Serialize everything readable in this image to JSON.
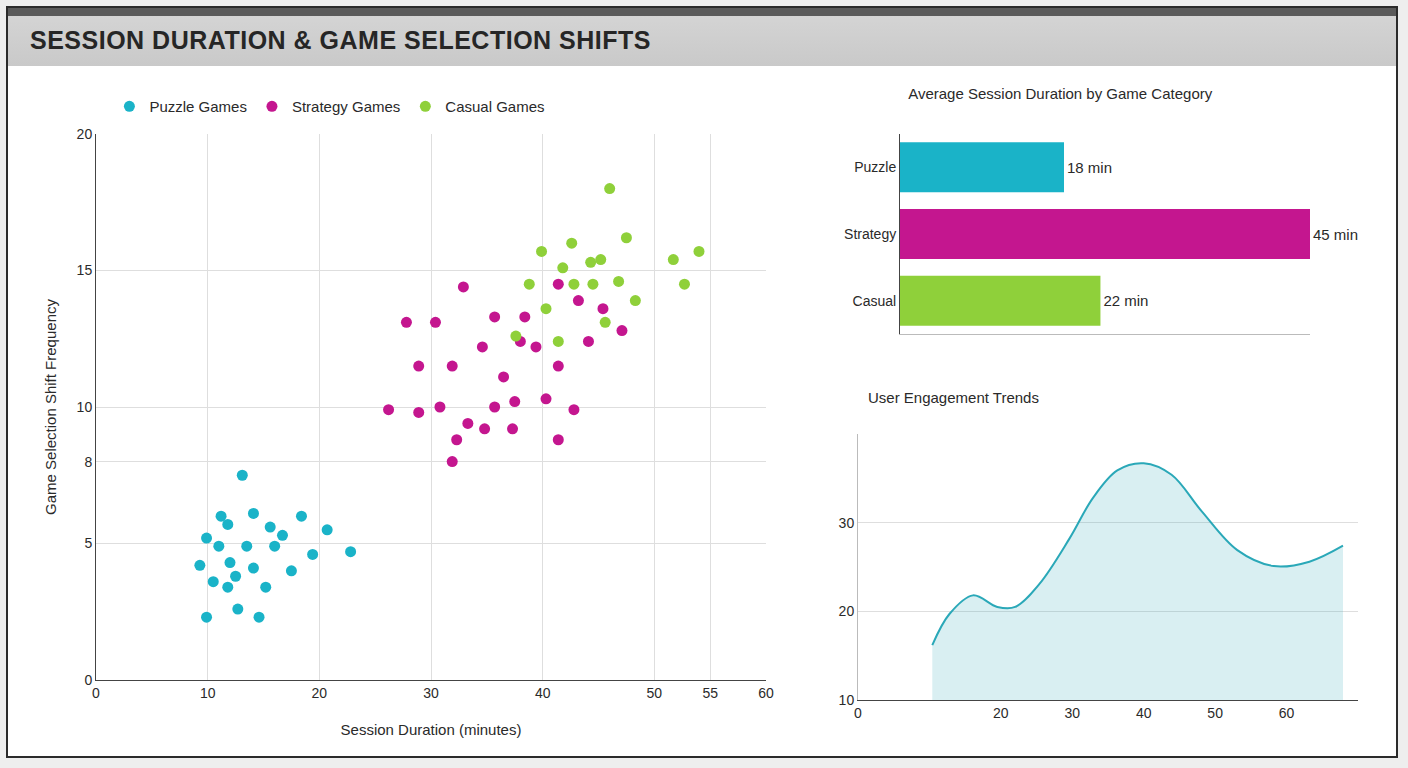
{
  "title": "SESSION DURATION & GAME SELECTION SHIFTS",
  "chart_data": [
    {
      "type": "scatter",
      "x_label": "Session Duration (minutes)",
      "y_label": "Game Selection Shift Frequency",
      "xlim": [
        0,
        60
      ],
      "xticks": [
        0,
        10,
        20,
        30,
        40,
        50,
        55,
        60
      ],
      "ylim": [
        0,
        20
      ],
      "yticks": [
        0,
        5,
        8,
        10,
        15,
        20
      ],
      "grid": true,
      "legend": "top",
      "series": [
        {
          "name": "Puzzle Games",
          "color": "#1ab3c8",
          "x": [
            13.1,
            11.2,
            14.1,
            9.9,
            11.8,
            15.6,
            18.4,
            20.7,
            22.8,
            19.4,
            17.5,
            15.2,
            12.7,
            9.9,
            14.6,
            9.3,
            10.5,
            12.0,
            13.5,
            16.0,
            11.0,
            12.5,
            14.1,
            16.7,
            11.8
          ],
          "values": [
            7.5,
            6.0,
            6.1,
            5.2,
            5.7,
            5.6,
            6.0,
            5.5,
            4.7,
            4.6,
            4.0,
            3.4,
            2.6,
            2.3,
            2.3,
            4.2,
            3.6,
            4.3,
            4.9,
            4.9,
            4.9,
            3.8,
            4.1,
            5.3,
            3.4
          ]
        },
        {
          "name": "Strategy Games",
          "color": "#c4168f",
          "x": [
            32.9,
            27.8,
            30.4,
            35.7,
            38.4,
            41.4,
            43.2,
            45.4,
            47.1,
            44.1,
            41.4,
            38.0,
            34.6,
            31.9,
            28.9,
            26.2,
            30.8,
            33.3,
            35.7,
            37.5,
            40.3,
            42.8,
            37.3,
            34.8,
            32.3,
            31.9,
            41.4,
            28.9,
            39.4,
            36.5
          ],
          "values": [
            14.4,
            13.1,
            13.1,
            13.3,
            13.3,
            14.5,
            13.9,
            13.6,
            12.8,
            12.4,
            11.5,
            12.4,
            12.2,
            11.5,
            11.5,
            9.9,
            10.0,
            9.4,
            10.0,
            10.2,
            10.3,
            9.9,
            9.2,
            9.2,
            8.8,
            8.0,
            8.8,
            9.8,
            12.2,
            11.1
          ]
        },
        {
          "name": "Casual Games",
          "color": "#8fd03a",
          "x": [
            46.0,
            39.9,
            42.6,
            45.2,
            47.5,
            42.8,
            38.8,
            40.3,
            37.6,
            41.4,
            44.5,
            46.8,
            48.3,
            45.6,
            51.7,
            54.0,
            52.7,
            44.3,
            41.8
          ],
          "values": [
            18.0,
            15.7,
            16.0,
            15.4,
            16.2,
            14.5,
            14.5,
            13.6,
            12.6,
            12.4,
            14.5,
            14.6,
            13.9,
            13.1,
            15.4,
            15.7,
            14.5,
            15.3,
            15.1
          ]
        }
      ]
    },
    {
      "type": "bar",
      "title": "Average Session Duration by Game Category",
      "orientation": "horizontal",
      "categories": [
        "Puzzle",
        "Strategy",
        "Casual"
      ],
      "values": [
        18,
        45,
        22
      ],
      "value_labels": [
        "18 min",
        "45 min",
        "22 min"
      ],
      "colors": [
        "#1ab3c8",
        "#c4168f",
        "#8fd03a"
      ],
      "data_labels": true,
      "xlim": [
        0,
        45
      ],
      "tick_labels": "y"
    },
    {
      "type": "area",
      "title": "User Engagement Trends",
      "x": [
        10.4,
        12.8,
        16.1,
        19.5,
        22.0,
        25.4,
        29.6,
        32.9,
        36.3,
        40.0,
        43.9,
        48.1,
        53.1,
        58.2,
        63.2,
        67.9
      ],
      "values": [
        16.2,
        19.7,
        21.8,
        20.5,
        20.5,
        23.1,
        28.2,
        32.8,
        35.9,
        36.7,
        35.4,
        31.3,
        26.9,
        25.1,
        25.6,
        27.4
      ],
      "color": "#2aa8b8",
      "xlim": [
        0,
        70
      ],
      "xticks": [
        0,
        20,
        30,
        40,
        50,
        60
      ],
      "ylim": [
        10,
        40
      ],
      "yticks": [
        10,
        20,
        30
      ],
      "grid": true
    }
  ]
}
